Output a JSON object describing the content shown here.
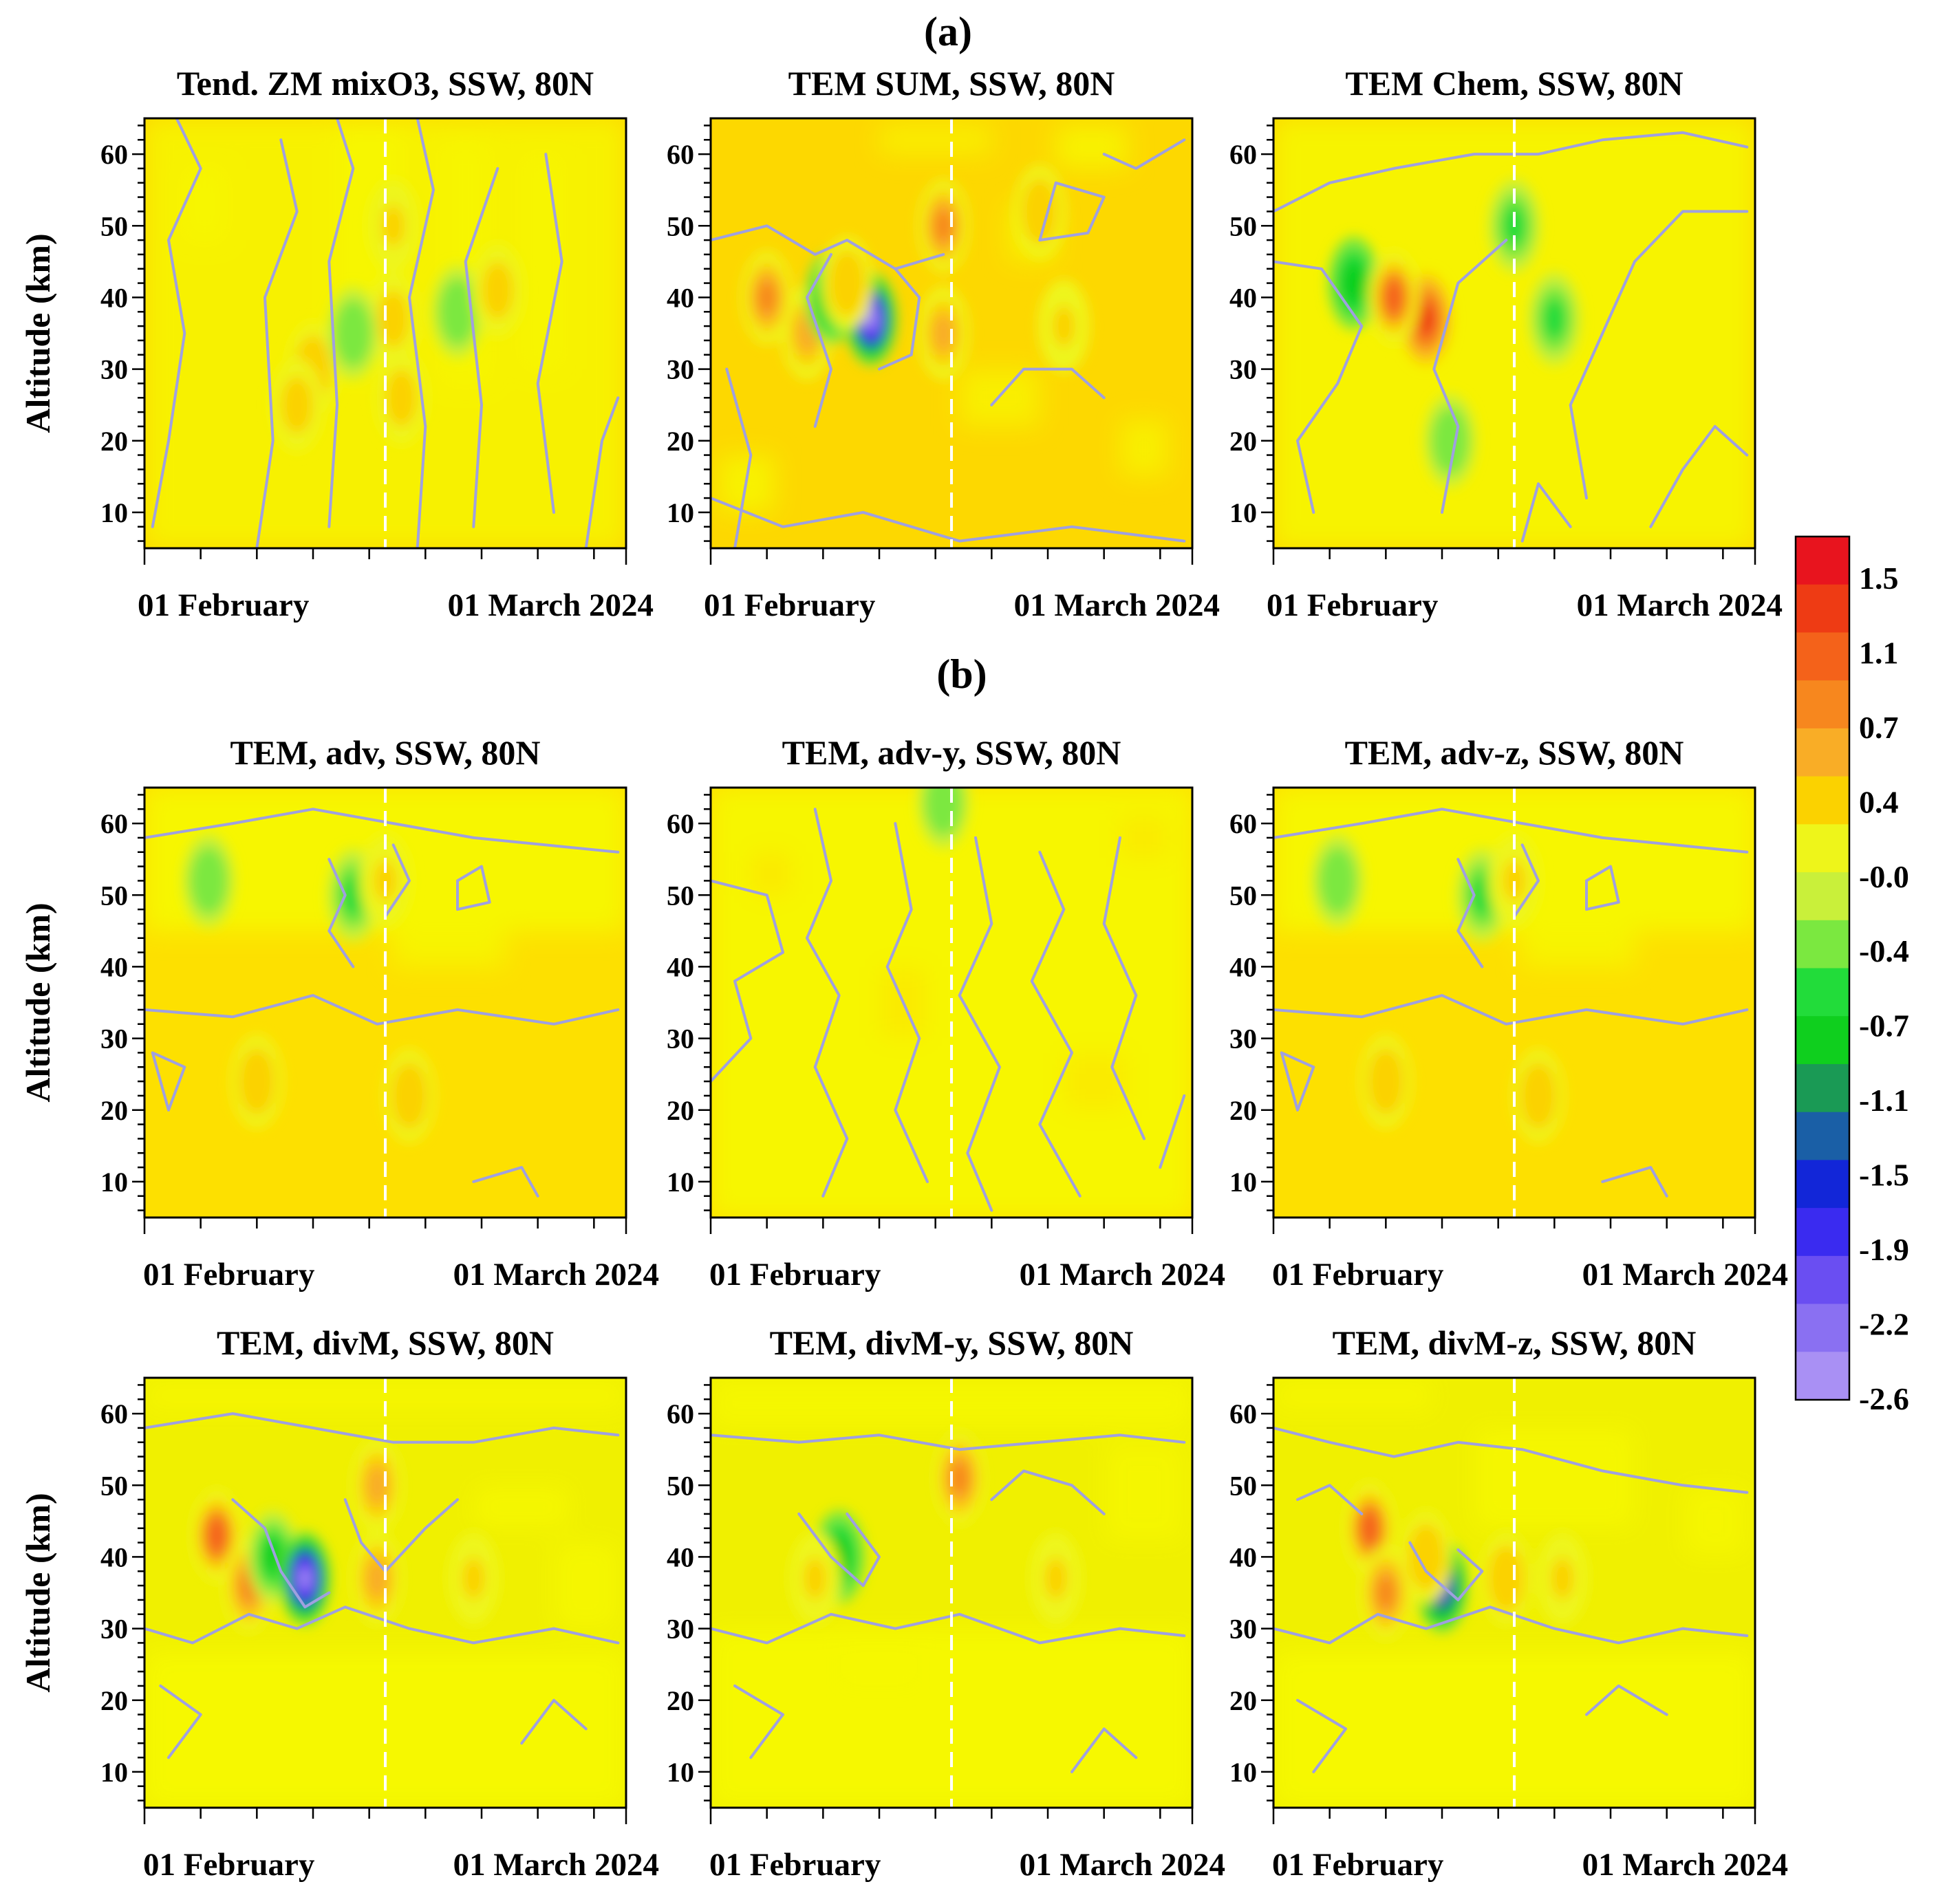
{
  "figure": {
    "section_a_label": "(a)",
    "section_b_label": "(b)"
  },
  "colors": {
    "background_zero": "#ffd700",
    "contour_line": "#9fa0e0",
    "ssw_marker": "#ffffff"
  },
  "colorbar": {
    "labels": [
      "1.5",
      "1.1",
      "0.7",
      "0.4",
      "-0.0",
      "-0.4",
      "-0.7",
      "-1.1",
      "-1.5",
      "-1.9",
      "-2.2",
      "-2.6"
    ],
    "colors": [
      "#e8141e",
      "#ee3b14",
      "#f4621a",
      "#f7871e",
      "#f9ad26",
      "#fbd200",
      "#eef51a",
      "#c9f03a",
      "#7be840",
      "#22dc3a",
      "#0fcf1e",
      "#1a9a55",
      "#1a5fa6",
      "#1226d8",
      "#3a2bf0",
      "#6a4ef2",
      "#8a70f2",
      "#a990f4"
    ]
  },
  "chart_data": [
    {
      "title": "Tend. ZM mixO3, SSW, 80N",
      "type": "heatmap",
      "variant": "A1",
      "ylabel": "Altitude (km)",
      "ylim": [
        5,
        65
      ],
      "yticks": [
        10,
        20,
        30,
        40,
        50,
        60
      ],
      "xlim": [
        -11,
        49
      ],
      "xtick_labels": [
        "01 February",
        "01 March 2024"
      ],
      "ssw_day": 19,
      "features": [
        {
          "t": 10,
          "z": 30,
          "v": 0.45
        },
        {
          "t": 8,
          "z": 25,
          "v": 0.35
        },
        {
          "t": 20,
          "z": 50,
          "v": 0.4
        },
        {
          "t": 20,
          "z": 37,
          "v": 0.35
        },
        {
          "t": 21,
          "z": 26,
          "v": 0.3
        },
        {
          "t": 15,
          "z": 35,
          "v": -0.4
        },
        {
          "t": 28,
          "z": 38,
          "v": -0.4
        },
        {
          "t": 33,
          "z": 41,
          "v": 0.35
        }
      ]
    },
    {
      "title": "TEM SUM, SSW, 80N",
      "type": "heatmap",
      "variant": "A2",
      "ylabel": "Altitude (km)",
      "ylim": [
        5,
        65
      ],
      "yticks": [
        10,
        20,
        30,
        40,
        50,
        60
      ],
      "xlim": [
        -11,
        49
      ],
      "xtick_labels": [
        "01 February",
        "01 March 2024"
      ],
      "ssw_day": 19,
      "features": [
        {
          "t": -4,
          "z": 40,
          "v": 0.8
        },
        {
          "t": 1,
          "z": 35,
          "v": 0.6
        },
        {
          "t": 4,
          "z": 40,
          "v": -0.7
        },
        {
          "t": 9,
          "z": 37,
          "v": -2.6
        },
        {
          "t": 6,
          "z": 42,
          "v": 0.5
        },
        {
          "t": 18,
          "z": 50,
          "v": 0.8
        },
        {
          "t": 18,
          "z": 35,
          "v": 0.7
        },
        {
          "t": 33,
          "z": 36,
          "v": 0.4
        },
        {
          "t": 30,
          "z": 52,
          "v": 0.5
        }
      ]
    },
    {
      "title": "TEM Chem, SSW, 80N",
      "type": "heatmap",
      "variant": "A3",
      "ylabel": "Altitude (km)",
      "ylim": [
        5,
        65
      ],
      "yticks": [
        10,
        20,
        30,
        40,
        50,
        60
      ],
      "xlim": [
        -11,
        49
      ],
      "xtick_labels": [
        "01 February",
        "01 March 2024"
      ],
      "ssw_day": 19,
      "features": [
        {
          "t": -1,
          "z": 42,
          "v": -0.7
        },
        {
          "t": 8,
          "z": 37,
          "v": 1.4
        },
        {
          "t": 4,
          "z": 40,
          "v": 1.0
        },
        {
          "t": 19,
          "z": 50,
          "v": -0.5
        },
        {
          "t": 24,
          "z": 37,
          "v": -0.6
        },
        {
          "t": 11,
          "z": 20,
          "v": -0.4
        }
      ]
    },
    {
      "title": "TEM, adv, SSW, 80N",
      "type": "heatmap",
      "variant": "B1",
      "ylabel": "Altitude (km)",
      "ylim": [
        5,
        65
      ],
      "yticks": [
        10,
        20,
        30,
        40,
        50,
        60
      ],
      "xlim": [
        -11,
        49
      ],
      "xtick_labels": [
        "01 February",
        "01 March 2024"
      ],
      "ssw_day": 19,
      "features": [
        {
          "t": 3,
          "z": 24,
          "v": 0.45
        },
        {
          "t": 22,
          "z": 22,
          "v": 0.5
        },
        {
          "t": 15,
          "z": 50,
          "v": -0.5
        },
        {
          "t": -3,
          "z": 52,
          "v": -0.4
        },
        {
          "t": 19,
          "z": 52,
          "v": 0.4
        }
      ]
    },
    {
      "title": "TEM, adv-y, SSW, 80N",
      "type": "heatmap",
      "variant": "B2",
      "ylabel": "Altitude (km)",
      "ylim": [
        5,
        65
      ],
      "yticks": [
        10,
        20,
        30,
        40,
        50,
        60
      ],
      "xlim": [
        -11,
        49
      ],
      "xtick_labels": [
        "01 February",
        "01 March 2024"
      ],
      "ssw_day": 19,
      "features": [
        {
          "t": 18,
          "z": 63,
          "v": -0.4
        }
      ]
    },
    {
      "title": "TEM, adv-z, SSW, 80N",
      "type": "heatmap",
      "variant": "B3",
      "ylabel": "Altitude (km)",
      "ylim": [
        5,
        65
      ],
      "yticks": [
        10,
        20,
        30,
        40,
        50,
        60
      ],
      "xlim": [
        -11,
        49
      ],
      "xtick_labels": [
        "01 February",
        "01 March 2024"
      ],
      "ssw_day": 19,
      "features": [
        {
          "t": 3,
          "z": 24,
          "v": 0.45
        },
        {
          "t": 22,
          "z": 22,
          "v": 0.5
        },
        {
          "t": 15,
          "z": 50,
          "v": -0.5
        },
        {
          "t": -3,
          "z": 52,
          "v": -0.4
        },
        {
          "t": 19,
          "z": 52,
          "v": 0.4
        }
      ]
    },
    {
      "title": "TEM, divM, SSW, 80N",
      "type": "heatmap",
      "variant": "C1",
      "ylabel": "Altitude (km)",
      "ylim": [
        5,
        65
      ],
      "yticks": [
        10,
        20,
        30,
        40,
        50,
        60
      ],
      "xlim": [
        -11,
        49
      ],
      "xtick_labels": [
        "01 February",
        "01 March 2024"
      ],
      "ssw_day": 19,
      "features": [
        {
          "t": -2,
          "z": 43,
          "v": 1.0
        },
        {
          "t": 2,
          "z": 36,
          "v": 0.9
        },
        {
          "t": 5,
          "z": 40,
          "v": -0.8
        },
        {
          "t": 9,
          "z": 37,
          "v": -2.6
        },
        {
          "t": 18,
          "z": 50,
          "v": 0.6
        },
        {
          "t": 18,
          "z": 37,
          "v": 0.6
        },
        {
          "t": 30,
          "z": 37,
          "v": 0.4
        }
      ]
    },
    {
      "title": "TEM, divM-y, SSW, 80N",
      "type": "heatmap",
      "variant": "C2",
      "ylabel": "Altitude (km)",
      "ylim": [
        5,
        65
      ],
      "yticks": [
        10,
        20,
        30,
        40,
        50,
        60
      ],
      "xlim": [
        -11,
        49
      ],
      "xtick_labels": [
        "01 February",
        "01 March 2024"
      ],
      "ssw_day": 19,
      "features": [
        {
          "t": 5,
          "z": 40,
          "v": -0.7
        },
        {
          "t": 20,
          "z": 51,
          "v": 0.8
        },
        {
          "t": 2,
          "z": 37,
          "v": 0.4
        },
        {
          "t": 32,
          "z": 37,
          "v": 0.4
        }
      ]
    },
    {
      "title": "TEM, divM-z, SSW, 80N",
      "type": "heatmap",
      "variant": "C3",
      "ylabel": "Altitude (km)",
      "ylim": [
        5,
        65
      ],
      "yticks": [
        10,
        20,
        30,
        40,
        50,
        60
      ],
      "xlim": [
        -11,
        49
      ],
      "xtick_labels": [
        "01 February",
        "01 March 2024"
      ],
      "ssw_day": 19,
      "features": [
        {
          "t": 1,
          "z": 44,
          "v": 1.0
        },
        {
          "t": 3,
          "z": 35,
          "v": 0.8
        },
        {
          "t": 10,
          "z": 36,
          "v": -1.9
        },
        {
          "t": 8,
          "z": 40,
          "v": 0.5
        },
        {
          "t": 18,
          "z": 37,
          "v": 0.5
        },
        {
          "t": 25,
          "z": 37,
          "v": 0.4
        }
      ]
    }
  ]
}
